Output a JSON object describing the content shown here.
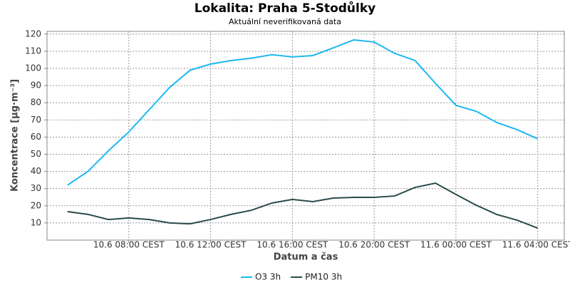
{
  "chart_data": {
    "type": "line",
    "title": "Lokalita: Praha 5-Stodůlky",
    "subtitle": "Aktuální neverifikovaná data",
    "y_label": "Koncentrace [µg·m⁻³]",
    "x_label": "Datum a čas",
    "x": [
      5,
      6,
      7,
      8,
      9,
      10,
      11,
      12,
      13,
      14,
      15,
      16,
      17,
      18,
      19,
      20,
      21,
      22,
      23,
      24,
      25,
      26,
      27,
      28
    ],
    "series": [
      {
        "name": "O3 3h",
        "color": "#1cb8f0",
        "values": [
          32,
          40,
          52,
          63,
          76,
          89,
          99,
          102.5,
          104.6,
          106,
          108,
          106.7,
          107.5,
          112,
          116.6,
          115.4,
          108.8,
          104.6,
          91.3,
          78.5,
          75,
          68.5,
          64.3,
          59
        ]
      },
      {
        "name": "PM10 3h",
        "color": "#2b4a4a",
        "values": [
          16.6,
          15,
          12,
          12.9,
          12,
          10,
          9.5,
          12,
          15,
          17.4,
          21.6,
          23.7,
          22.4,
          24.5,
          24.9,
          24.9,
          25.7,
          30.7,
          33.2,
          26.6,
          20.3,
          14.9,
          11.6,
          7
        ]
      }
    ],
    "xlim": [
      4,
      29.3
    ],
    "xticks": [
      {
        "value": 8,
        "label": "10.6 08:00 CEST"
      },
      {
        "value": 12,
        "label": "10.6 12:00 CEST"
      },
      {
        "value": 16,
        "label": "10.6 16:00 CEST"
      },
      {
        "value": 20,
        "label": "10.6 20:00 CEST"
      },
      {
        "value": 24,
        "label": "11.6 00:00 CEST"
      },
      {
        "value": 28,
        "label": "11.6 04:00 CEST"
      }
    ],
    "ylim": [
      0,
      121.6
    ],
    "yticks": [
      10,
      20,
      30,
      40,
      50,
      60,
      70,
      80,
      90,
      100,
      110,
      120
    ],
    "grid": true,
    "legend": "bottom"
  }
}
